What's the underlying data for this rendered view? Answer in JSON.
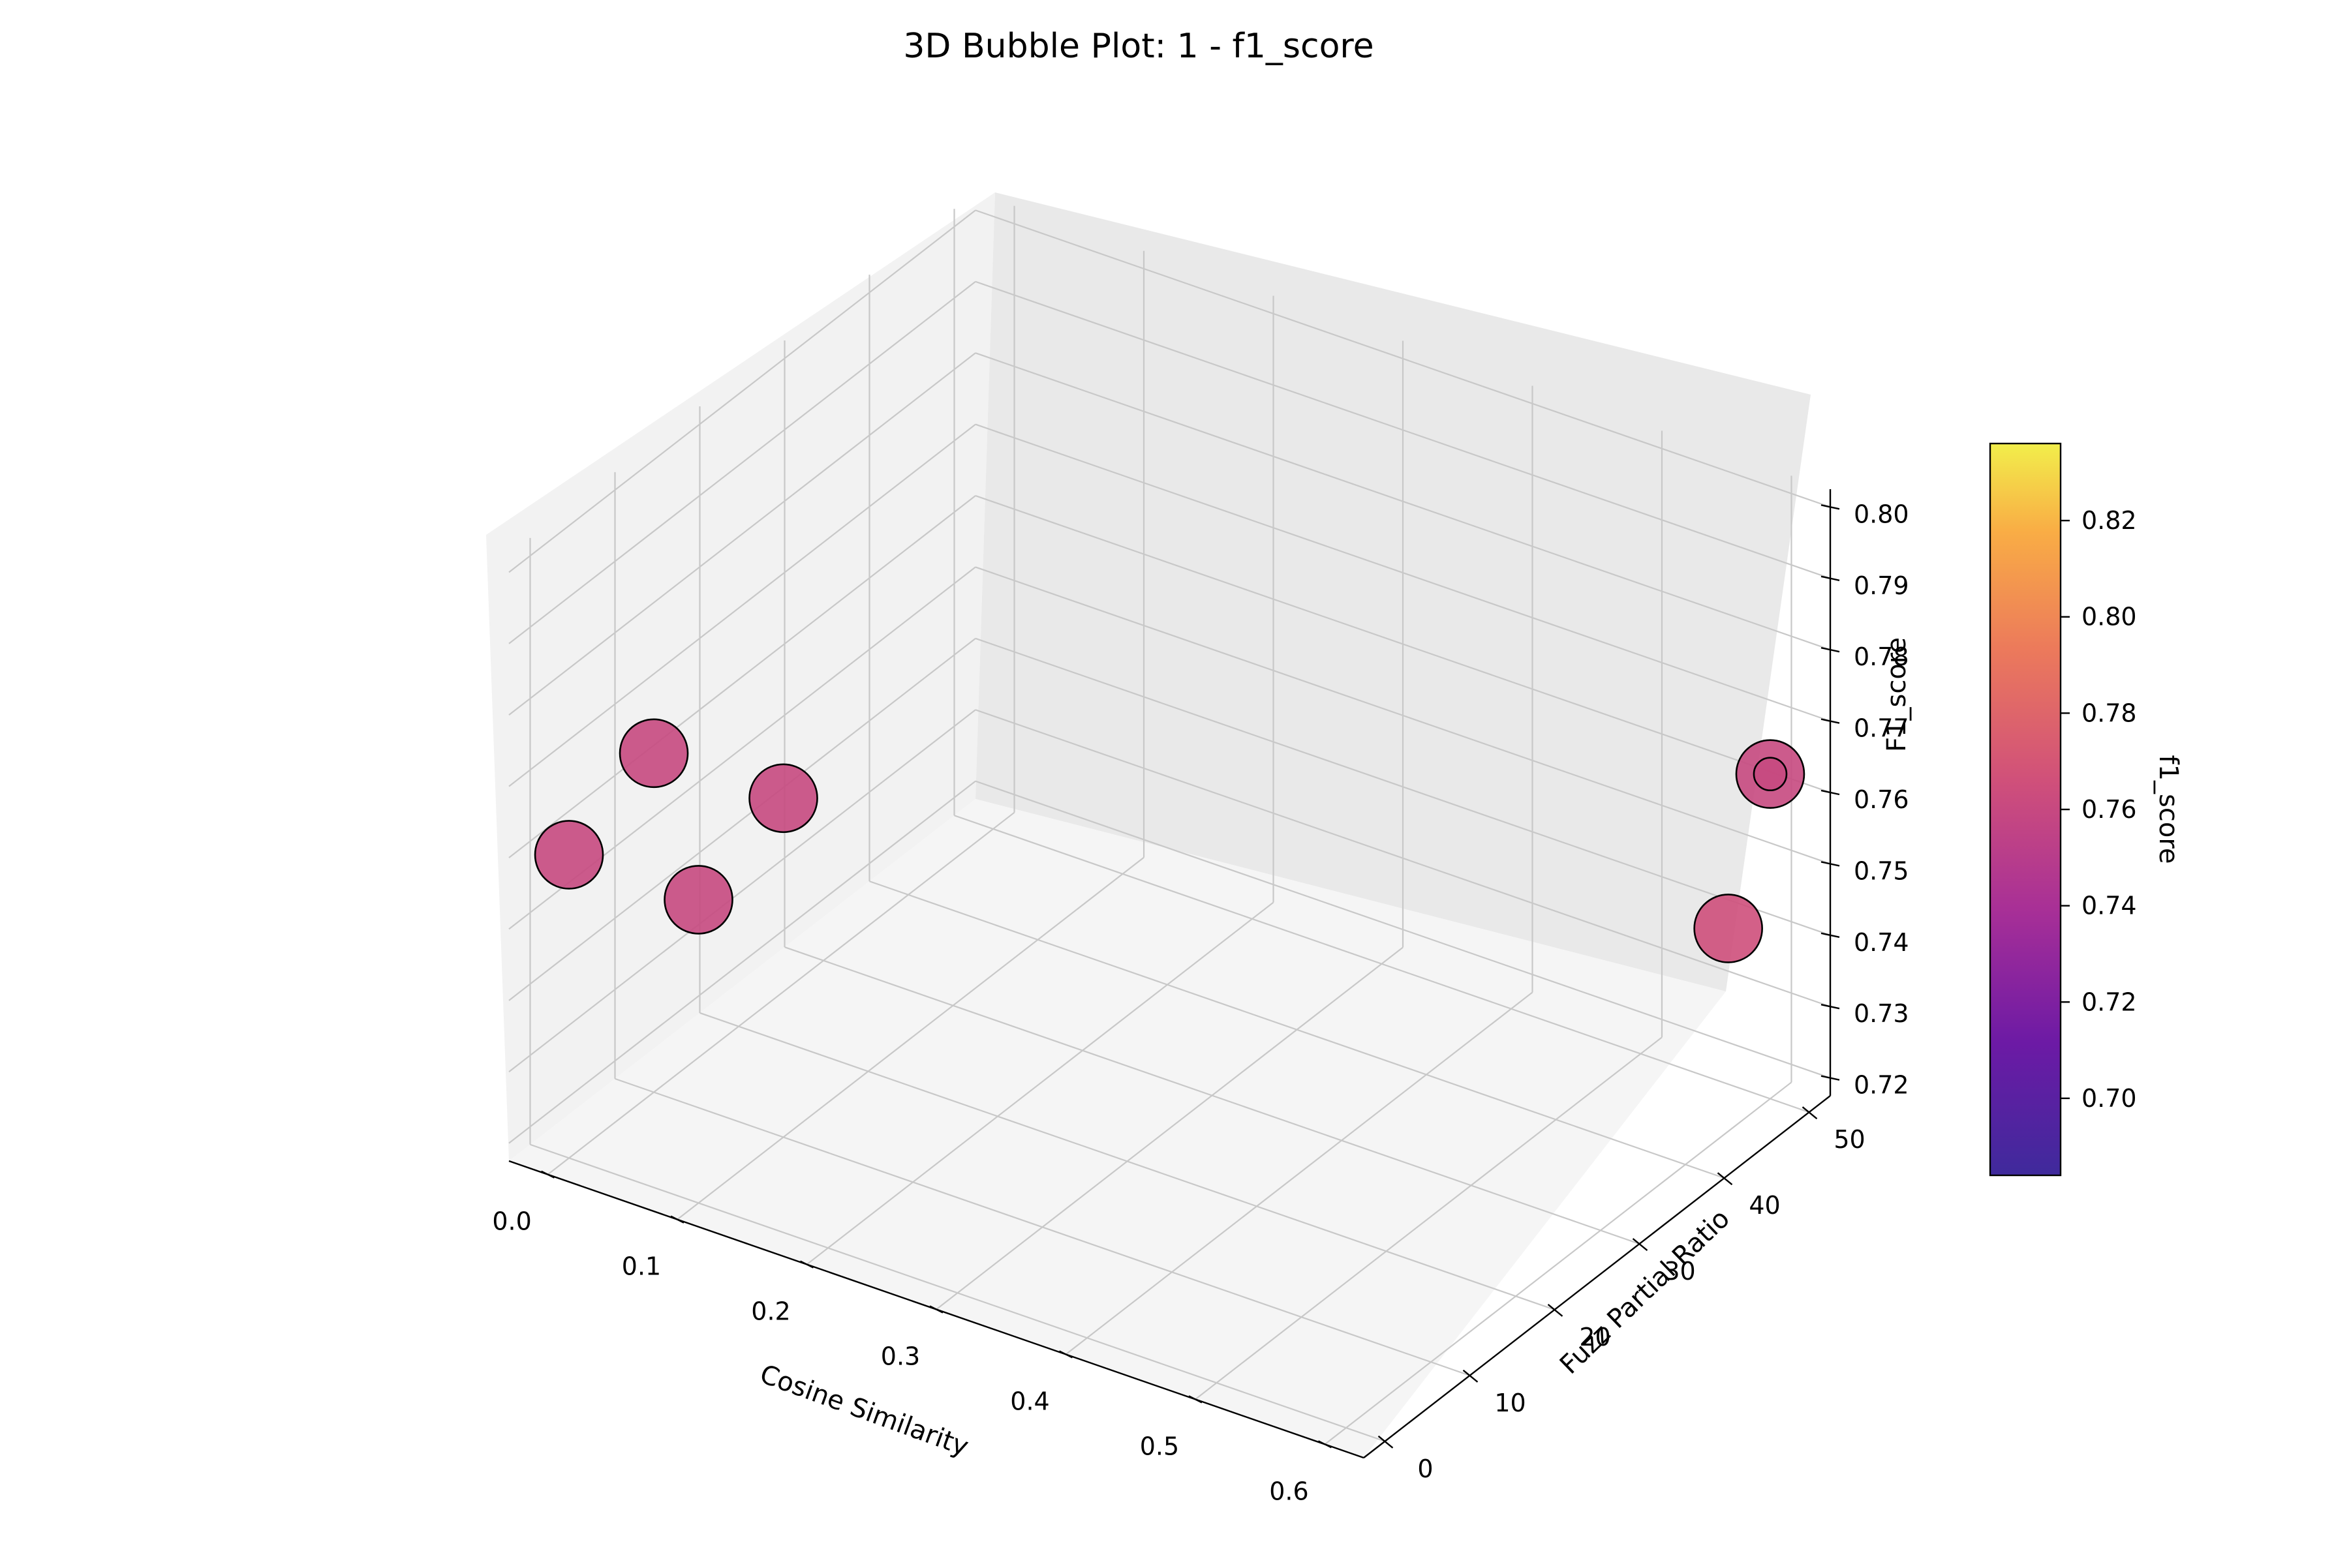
{
  "chart_data": {
    "type": "scatter",
    "subtype": "3d-bubble",
    "title": "3D Bubble Plot: 1 - f1_score",
    "xlabel": "Cosine Similarity",
    "ylabel": "Fuzz Partial Ratio",
    "zlabel": "F1_score",
    "colorbar_label": "f1_score",
    "colormap": "plasma",
    "xlim": [
      -0.03,
      0.63
    ],
    "ylim": [
      -2.5,
      52.5
    ],
    "zlim": [
      0.7175,
      0.8025
    ],
    "x_ticks": [
      "0.0",
      "0.1",
      "0.2",
      "0.3",
      "0.4",
      "0.5",
      "0.6"
    ],
    "y_ticks": [
      "0",
      "10",
      "20",
      "30",
      "40",
      "50"
    ],
    "z_ticks": [
      "0.72",
      "0.73",
      "0.74",
      "0.75",
      "0.76",
      "0.77",
      "0.78",
      "0.79",
      "0.80"
    ],
    "colorbar_ticks": [
      "0.70",
      "0.72",
      "0.74",
      "0.76",
      "0.78",
      "0.80",
      "0.82"
    ],
    "colorbar_range": [
      0.684,
      0.836
    ],
    "grid": true,
    "points": [
      {
        "x": 0.0,
        "y": 0,
        "z": 0.76,
        "color_value": 0.76
      },
      {
        "x": 0.0,
        "y": 10,
        "z": 0.765,
        "color_value": 0.76
      },
      {
        "x": 0.1,
        "y": 0,
        "z": 0.76,
        "color_value": 0.76
      },
      {
        "x": 0.1,
        "y": 10,
        "z": 0.765,
        "color_value": 0.76
      },
      {
        "x": 0.6,
        "y": 50,
        "z": 0.763,
        "color_value": 0.76
      },
      {
        "x": 0.6,
        "y": 50,
        "z": 0.763,
        "color_value": 0.76,
        "small": true
      },
      {
        "x": 0.62,
        "y": 42,
        "z": 0.75,
        "color_value": 0.765
      }
    ]
  }
}
